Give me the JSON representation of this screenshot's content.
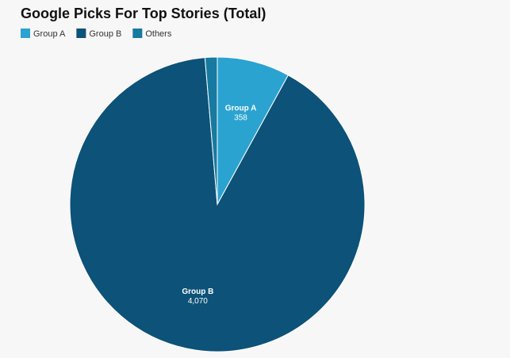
{
  "chart_data": {
    "type": "pie",
    "title": "Google Picks For Top Stories (Total)",
    "categories": [
      "Group A",
      "Group B",
      "Others"
    ],
    "values": [
      358,
      4070,
      60
    ],
    "value_labels": [
      "358",
      "4,070",
      null
    ],
    "colors": [
      "#2ba3d0",
      "#0d5278",
      "#177aa0"
    ]
  }
}
